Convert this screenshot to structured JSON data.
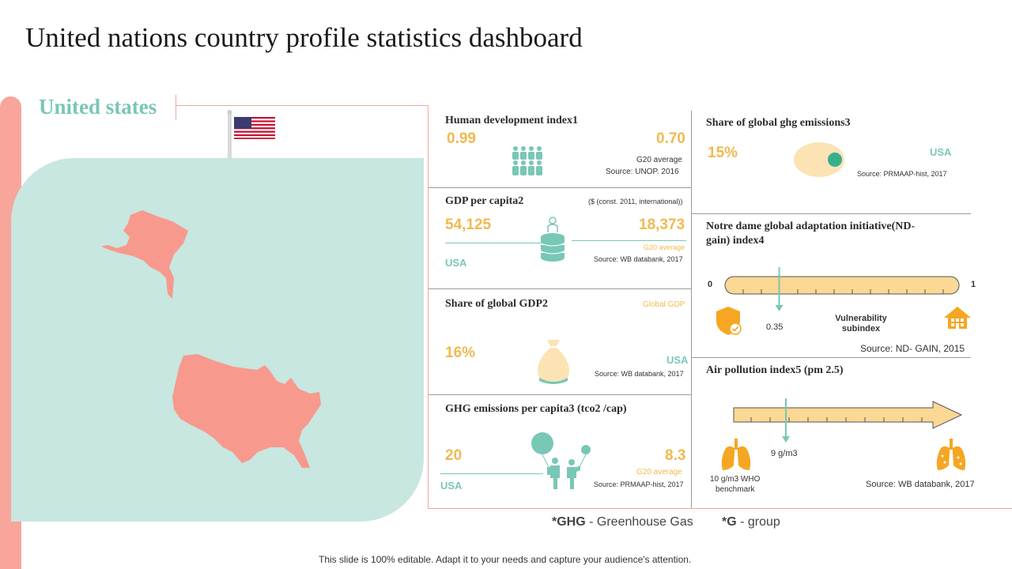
{
  "title": "United nations country profile statistics dashboard",
  "country": "United states",
  "hdi": {
    "title": "Human development index1",
    "country_value": "0.99",
    "g20_value": "0.70",
    "g20_label": "G20 average",
    "source": "Source: UNOP.  2016"
  },
  "gdp_per_capita": {
    "title": "GDP per capita2",
    "unit_note": "($ (const. 2011, international))",
    "country_value": "54,125",
    "g20_value": "18,373",
    "g20_label": "G20 average",
    "country_label": "USA",
    "source": "Source: WB databank, 2017"
  },
  "share_gdp": {
    "title": "Share of global GDP2",
    "global_label": "Global GDP",
    "value": "16%",
    "country_label": "USA",
    "source": "Source: WB databank, 2017"
  },
  "ghg_per_capita": {
    "title": "GHG emissions per capita3 (tco2 /cap)",
    "country_value": "20",
    "g20_value": "8.3",
    "g20_label": "G20 average",
    "country_label": "USA",
    "source": "Source: PRMAAP-hist, 2017"
  },
  "share_ghg": {
    "title": "Share of global ghg emissions3",
    "value": "15%",
    "country_label": "USA",
    "source": "Source: PRMAAP-hist, 2017"
  },
  "nd_gain": {
    "title_line1": "Notre dame global adaptation initiative(ND-",
    "title_line2": "gain) index4",
    "min": "0",
    "max": "1",
    "value": "0.35",
    "value_fraction": 0.35,
    "sub_line1": "Vulnerability",
    "sub_line2": "subindex",
    "source": "Source: ND- GAIN,  2015"
  },
  "air": {
    "title": "Air pollution index5 (pm 2.5)",
    "value": "9 g/m3",
    "bench_line1": "10 g/m3 WHO",
    "bench_line2": "benchmark",
    "source": "Source: WB databank, 2017"
  },
  "footnotes": {
    "ghg_abbr": "*GHG",
    "ghg_text": " - Greenhouse  Gas",
    "g_abbr": "*G",
    "g_text": " - group"
  },
  "footer": "This slide is 100% editable. Adapt it to your needs and capture your audience's attention.",
  "colors": {
    "accent_pink": "#f8a59b",
    "accent_teal": "#79c7b6",
    "accent_yellow": "#f1b94f",
    "map_bg": "#c7e7e0"
  }
}
